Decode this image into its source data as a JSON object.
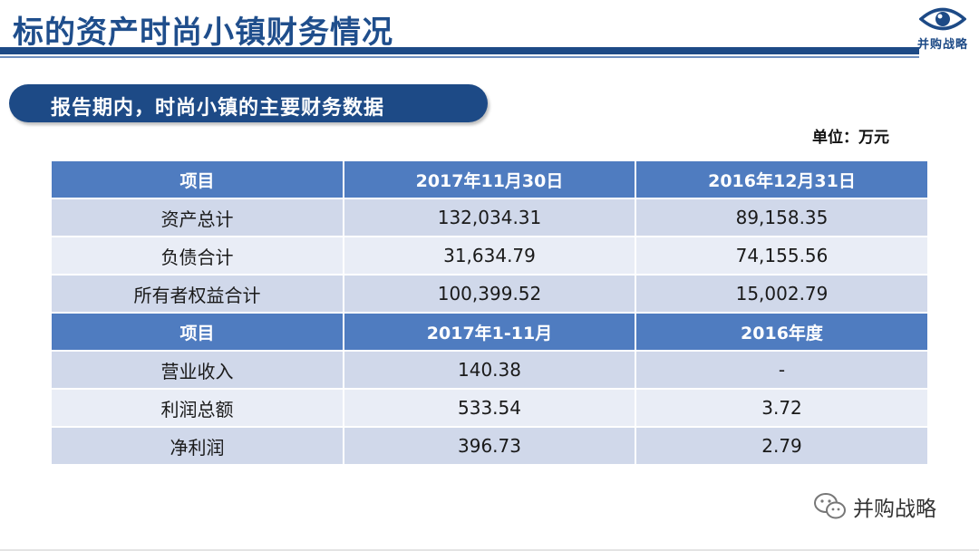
{
  "title": "标的资产时尚小镇财务情况",
  "logo": {
    "text": "并购战略",
    "icon": "eye-icon",
    "color": "#1d4a86"
  },
  "section": {
    "heading": "报告期内，时尚小镇的主要财务数据"
  },
  "unit": "单位：万元",
  "colors": {
    "primary": "#1d4a86",
    "header": "#4f7cc0",
    "row_dark": "#d0d8ea",
    "row_light": "#e9edf6"
  },
  "table": {
    "balance_header": [
      "项目",
      "2017年11月30日",
      "2016年12月31日"
    ],
    "balance_rows": [
      [
        "资产总计",
        "132,034.31",
        "89,158.35"
      ],
      [
        "负债合计",
        "31,634.79",
        "74,155.56"
      ],
      [
        "所有者权益合计",
        "100,399.52",
        "15,002.79"
      ]
    ],
    "income_header": [
      "项目",
      "2017年1-11月",
      "2016年度"
    ],
    "income_rows": [
      [
        "营业收入",
        "140.38",
        "-"
      ],
      [
        "利润总额",
        "533.54",
        "3.72"
      ],
      [
        "净利润",
        "396.73",
        "2.79"
      ]
    ]
  },
  "watermark": {
    "text": "并购战略",
    "icon": "wechat-icon"
  }
}
